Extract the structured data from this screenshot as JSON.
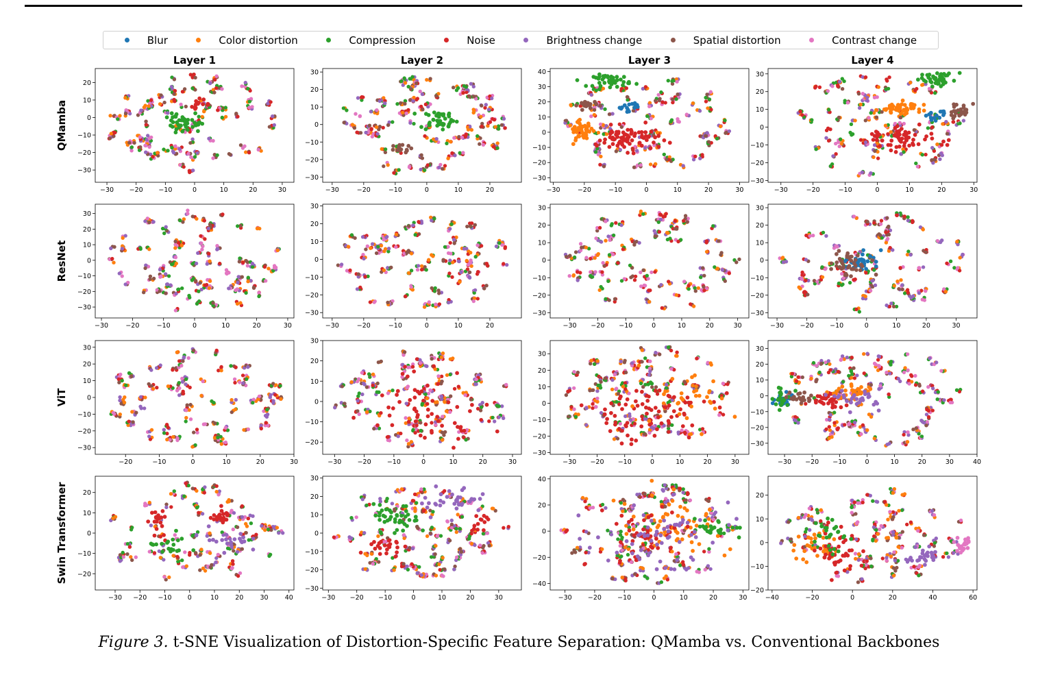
{
  "chart_data": {
    "type": "scatter",
    "legend_placement": "top-center",
    "legend": [
      "Blur",
      "Color distortion",
      "Compression",
      "Noise",
      "Brightness change",
      "Spatial distortion",
      "Contrast change"
    ],
    "series_colors": [
      "#1f77b4",
      "#ff7f0e",
      "#2ca02c",
      "#d62728",
      "#9467bd",
      "#8c564b",
      "#e377c2"
    ],
    "column_titles": [
      "Layer 1",
      "Layer 2",
      "Layer 3",
      "Layer 4"
    ],
    "row_labels": [
      "QMamba",
      "ResNet",
      "ViT",
      "Swin Transformer"
    ],
    "grid": false,
    "panels": [
      [
        {
          "xlim": [
            -34,
            34
          ],
          "ylim": [
            -37,
            28
          ],
          "xticks": [
            -30,
            -20,
            -10,
            0,
            10,
            20,
            30
          ],
          "yticks": [
            -30,
            -20,
            -10,
            0,
            10,
            20
          ],
          "clusters": [
            {
              "series": 2,
              "x": -4,
              "y": -3,
              "sx": 3,
              "sy": 3,
              "n": 40
            },
            {
              "series": 3,
              "x": 2,
              "y": 8,
              "sx": 2,
              "sy": 2,
              "n": 14
            }
          ]
        },
        {
          "xlim": [
            -33,
            30
          ],
          "ylim": [
            -33,
            32
          ],
          "xticks": [
            -30,
            -20,
            -10,
            0,
            10,
            20
          ],
          "yticks": [
            -30,
            -20,
            -10,
            0,
            10,
            20,
            30
          ],
          "clusters": [
            {
              "series": 2,
              "x": 4,
              "y": 3,
              "sx": 3,
              "sy": 3,
              "n": 40
            },
            {
              "series": 5,
              "x": -9,
              "y": -14,
              "sx": 2,
              "sy": 1,
              "n": 14
            }
          ]
        },
        {
          "xlim": [
            -31,
            33
          ],
          "ylim": [
            -33,
            42
          ],
          "xticks": [
            -30,
            -20,
            -10,
            0,
            10,
            20,
            30
          ],
          "yticks": [
            -30,
            -20,
            -10,
            0,
            10,
            20,
            30,
            40
          ],
          "clusters": [
            {
              "series": 2,
              "x": -11,
              "y": 34,
              "sx": 3,
              "sy": 2,
              "n": 45
            },
            {
              "series": 1,
              "x": -21,
              "y": 1,
              "sx": 2,
              "sy": 3,
              "n": 45
            },
            {
              "series": 5,
              "x": -19,
              "y": 18,
              "sx": 1.5,
              "sy": 1.5,
              "n": 22
            },
            {
              "series": 0,
              "x": -6,
              "y": 17,
              "sx": 2,
              "sy": 1.5,
              "n": 15
            },
            {
              "series": 3,
              "x": -6,
              "y": -4,
              "sx": 5,
              "sy": 4,
              "n": 75
            }
          ]
        },
        {
          "xlim": [
            -34,
            31
          ],
          "ylim": [
            -31,
            33
          ],
          "xticks": [
            -30,
            -20,
            -10,
            0,
            10,
            20,
            30
          ],
          "yticks": [
            -30,
            -20,
            -10,
            0,
            10,
            20,
            30
          ],
          "clusters": [
            {
              "series": 2,
              "x": 19,
              "y": 27,
              "sx": 3,
              "sy": 2,
              "n": 42
            },
            {
              "series": 1,
              "x": 7,
              "y": 11,
              "sx": 4,
              "sy": 2,
              "n": 48
            },
            {
              "series": 5,
              "x": 26,
              "y": 9,
              "sx": 1.5,
              "sy": 2,
              "n": 24
            },
            {
              "series": 0,
              "x": 18,
              "y": 6,
              "sx": 1.5,
              "sy": 2,
              "n": 14
            },
            {
              "series": 3,
              "x": 8,
              "y": -6,
              "sx": 5,
              "sy": 3,
              "n": 60
            }
          ]
        }
      ],
      [
        {
          "xlim": [
            -32,
            32
          ],
          "ylim": [
            -37,
            36
          ],
          "xticks": [
            -30,
            -20,
            -10,
            0,
            10,
            20,
            30
          ],
          "yticks": [
            -30,
            -20,
            -10,
            0,
            10,
            20,
            30
          ],
          "clusters": []
        },
        {
          "xlim": [
            -33,
            30
          ],
          "ylim": [
            -33,
            31
          ],
          "xticks": [
            -30,
            -20,
            -10,
            0,
            10,
            20
          ],
          "yticks": [
            -30,
            -20,
            -10,
            0,
            10,
            20,
            30
          ],
          "clusters": []
        },
        {
          "xlim": [
            -37,
            34
          ],
          "ylim": [
            -33,
            32
          ],
          "xticks": [
            -30,
            -20,
            -10,
            0,
            10,
            20,
            30
          ],
          "yticks": [
            -30,
            -20,
            -10,
            0,
            10,
            20,
            30
          ],
          "clusters": []
        },
        {
          "xlim": [
            -33,
            37
          ],
          "ylim": [
            -33,
            32
          ],
          "xticks": [
            -30,
            -20,
            -10,
            0,
            10,
            20,
            30
          ],
          "yticks": [
            -30,
            -20,
            -10,
            0,
            10,
            20,
            30
          ],
          "clusters": [
            {
              "series": 0,
              "x": -2,
              "y": 0,
              "sx": 3,
              "sy": 3,
              "n": 35
            },
            {
              "series": 5,
              "x": -5,
              "y": -2,
              "sx": 3,
              "sy": 3,
              "n": 35
            }
          ]
        }
      ],
      [
        {
          "xlim": [
            -29,
            30
          ],
          "ylim": [
            -34,
            34
          ],
          "xticks": [
            -20,
            -10,
            0,
            10,
            20,
            30
          ],
          "yticks": [
            -30,
            -20,
            -10,
            0,
            10,
            20,
            30
          ],
          "clusters": []
        },
        {
          "xlim": [
            -34,
            33
          ],
          "ylim": [
            -26,
            30
          ],
          "xticks": [
            -30,
            -20,
            -10,
            0,
            10,
            20,
            30
          ],
          "yticks": [
            -20,
            -10,
            0,
            10,
            20,
            30
          ],
          "clusters": [
            {
              "series": 3,
              "x": 2,
              "y": -2,
              "sx": 10,
              "sy": 9,
              "n": 55
            }
          ]
        },
        {
          "xlim": [
            -37,
            35
          ],
          "ylim": [
            -31,
            38
          ],
          "xticks": [
            -30,
            -20,
            -10,
            0,
            10,
            20,
            30
          ],
          "yticks": [
            -30,
            -20,
            -10,
            0,
            10,
            20,
            30
          ],
          "clusters": [
            {
              "series": 3,
              "x": -2,
              "y": -6,
              "sx": 12,
              "sy": 9,
              "n": 75
            },
            {
              "series": 1,
              "x": 10,
              "y": 0,
              "sx": 10,
              "sy": 8,
              "n": 30
            }
          ]
        },
        {
          "xlim": [
            -36,
            40
          ],
          "ylim": [
            -37,
            35
          ],
          "xticks": [
            -30,
            -20,
            -10,
            0,
            10,
            20,
            30,
            40
          ],
          "yticks": [
            -30,
            -20,
            -10,
            0,
            10,
            20,
            30
          ],
          "clusters": [
            {
              "series": 0,
              "x": -30,
              "y": -3,
              "sx": 2,
              "sy": 2,
              "n": 20
            },
            {
              "series": 2,
              "x": -31,
              "y": -2,
              "sx": 2,
              "sy": 3,
              "n": 22
            },
            {
              "series": 5,
              "x": -24,
              "y": -1,
              "sx": 2,
              "sy": 2,
              "n": 20
            },
            {
              "series": 3,
              "x": -14,
              "y": -3,
              "sx": 3,
              "sy": 3,
              "n": 35
            },
            {
              "series": 1,
              "x": -5,
              "y": 2,
              "sx": 4,
              "sy": 2,
              "n": 30
            },
            {
              "series": 4,
              "x": -3,
              "y": -2,
              "sx": 4,
              "sy": 3,
              "n": 30
            }
          ]
        }
      ],
      [
        {
          "xlim": [
            -38,
            42
          ],
          "ylim": [
            -28,
            28
          ],
          "xticks": [
            -30,
            -20,
            -10,
            0,
            10,
            20,
            30,
            40
          ],
          "yticks": [
            -20,
            -10,
            0,
            10,
            20
          ],
          "clusters": [
            {
              "series": 3,
              "x": 12,
              "y": 8,
              "sx": 2,
              "sy": 1.5,
              "n": 25
            },
            {
              "series": 3,
              "x": -13,
              "y": 3,
              "sx": 2,
              "sy": 4,
              "n": 18
            },
            {
              "series": 2,
              "x": -8,
              "y": -6,
              "sx": 4,
              "sy": 3,
              "n": 20
            },
            {
              "series": 4,
              "x": 16,
              "y": -3,
              "sx": 4,
              "sy": 3,
              "n": 20
            }
          ]
        },
        {
          "xlim": [
            -32,
            38
          ],
          "ylim": [
            -31,
            31
          ],
          "xticks": [
            -30,
            -20,
            -10,
            0,
            10,
            20,
            30
          ],
          "yticks": [
            -30,
            -20,
            -10,
            0,
            10,
            20,
            30
          ],
          "clusters": [
            {
              "series": 2,
              "x": -6,
              "y": 7,
              "sx": 4,
              "sy": 4,
              "n": 40
            },
            {
              "series": 3,
              "x": -10,
              "y": -8,
              "sx": 3,
              "sy": 3,
              "n": 20
            },
            {
              "series": 4,
              "x": 14,
              "y": 18,
              "sx": 6,
              "sy": 4,
              "n": 35
            },
            {
              "series": 3,
              "x": 24,
              "y": 7,
              "sx": 2,
              "sy": 2,
              "n": 12
            }
          ]
        },
        {
          "xlim": [
            -35,
            32
          ],
          "ylim": [
            -45,
            42
          ],
          "xticks": [
            -30,
            -20,
            -10,
            0,
            10,
            20,
            30
          ],
          "yticks": [
            -40,
            -20,
            0,
            20,
            40
          ],
          "clusters": [
            {
              "series": 1,
              "x": 5,
              "y": 5,
              "sx": 8,
              "sy": 12,
              "n": 60
            },
            {
              "series": 3,
              "x": 0,
              "y": 0,
              "sx": 6,
              "sy": 8,
              "n": 35
            },
            {
              "series": 2,
              "x": 22,
              "y": 1,
              "sx": 4,
              "sy": 3,
              "n": 30
            },
            {
              "series": 4,
              "x": 0,
              "y": -10,
              "sx": 10,
              "sy": 15,
              "n": 60
            }
          ]
        },
        {
          "xlim": [
            -42,
            62
          ],
          "ylim": [
            -20,
            28
          ],
          "xticks": [
            -40,
            -20,
            0,
            20,
            40,
            60
          ],
          "yticks": [
            -20,
            -10,
            0,
            10,
            20
          ],
          "clusters": [
            {
              "series": 1,
              "x": -18,
              "y": -2,
              "sx": 5,
              "sy": 4,
              "n": 30
            },
            {
              "series": 3,
              "x": -5,
              "y": -3,
              "sx": 6,
              "sy": 5,
              "n": 40
            },
            {
              "series": 2,
              "x": -10,
              "y": 3,
              "sx": 5,
              "sy": 5,
              "n": 25
            },
            {
              "series": 4,
              "x": 36,
              "y": -5,
              "sx": 3,
              "sy": 2,
              "n": 25
            },
            {
              "series": 6,
              "x": 55,
              "y": -1,
              "sx": 2,
              "sy": 2,
              "n": 22
            }
          ]
        }
      ]
    ]
  },
  "caption": {
    "figure_label": "Figure 3.",
    "text": " t-SNE Visualization of Distortion-Specific Feature Separation: QMamba vs. Conventional Backbones"
  }
}
